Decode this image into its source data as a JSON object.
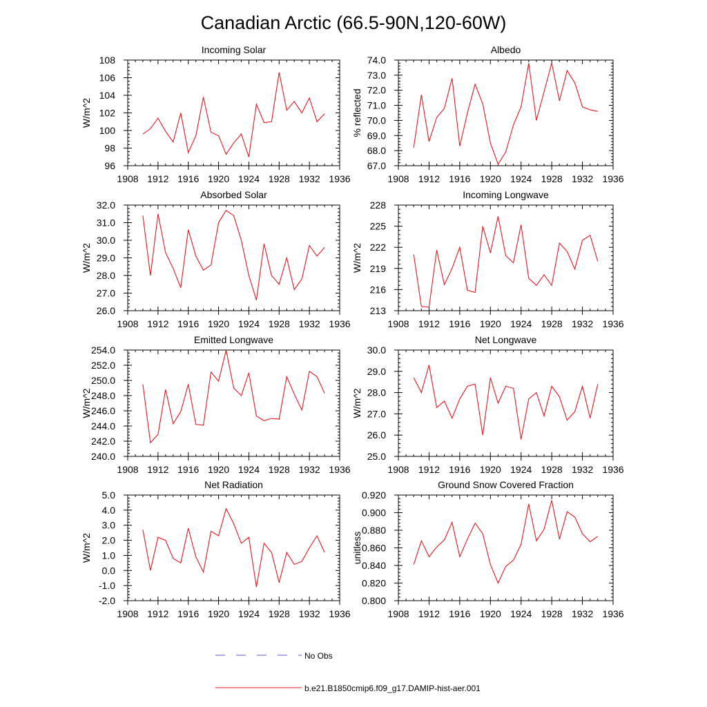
{
  "title": "Canadian Arctic (66.5-90N,120-60W)",
  "legend": {
    "obs_label": "No Obs",
    "model_label": "b.e21.B1850cmip6.f09_g17.DAMIP-hist-aer.001",
    "obs_color": "#5a5ad6",
    "model_color": "#e8141c"
  },
  "chart_data": [
    {
      "type": "line",
      "title": "Incoming Solar",
      "ylabel": "W/m^2",
      "xlim": [
        1908,
        1936
      ],
      "ylim": [
        96,
        108
      ],
      "xticks": [
        "1908",
        "1912",
        "1916",
        "1920",
        "1924",
        "1928",
        "1932",
        "1936"
      ],
      "yticks": [
        "96",
        "98",
        "100",
        "102",
        "104",
        "106",
        "108"
      ],
      "x": [
        1910,
        1911,
        1912,
        1913,
        1914,
        1915,
        1916,
        1917,
        1918,
        1919,
        1920,
        1921,
        1922,
        1923,
        1924,
        1925,
        1926,
        1927,
        1928,
        1929,
        1930,
        1931,
        1932,
        1933,
        1934
      ],
      "series": [
        {
          "values": [
            99.6,
            100.2,
            101.4,
            99.9,
            98.7,
            102.0,
            97.5,
            99.4,
            103.8,
            99.8,
            99.4,
            97.3,
            98.6,
            99.6,
            97.0,
            103.0,
            100.9,
            101.0,
            106.6,
            102.3,
            103.3,
            102.0,
            103.7,
            101.0,
            101.9
          ]
        }
      ]
    },
    {
      "type": "line",
      "title": "Albedo",
      "ylabel": "% reflected",
      "xlim": [
        1908,
        1936
      ],
      "ylim": [
        67.0,
        74.0
      ],
      "xticks": [
        "1908",
        "1912",
        "1916",
        "1920",
        "1924",
        "1928",
        "1932",
        "1936"
      ],
      "yticks": [
        "67.0",
        "68.0",
        "69.0",
        "70.0",
        "71.0",
        "72.0",
        "73.0",
        "74.0"
      ],
      "x": [
        1910,
        1911,
        1912,
        1913,
        1914,
        1915,
        1916,
        1917,
        1918,
        1919,
        1920,
        1921,
        1922,
        1923,
        1924,
        1925,
        1926,
        1927,
        1928,
        1929,
        1930,
        1931,
        1932,
        1933,
        1934
      ],
      "series": [
        {
          "values": [
            68.2,
            71.7,
            68.6,
            70.2,
            70.8,
            72.8,
            68.3,
            70.5,
            72.4,
            71.1,
            68.5,
            67.1,
            67.9,
            69.7,
            70.9,
            73.8,
            70.0,
            71.9,
            73.8,
            71.3,
            73.3,
            72.5,
            70.9,
            70.7,
            70.6
          ]
        }
      ]
    },
    {
      "type": "line",
      "title": "Absorbed Solar",
      "ylabel": "W/m^2",
      "xlim": [
        1908,
        1936
      ],
      "ylim": [
        26.0,
        32.0
      ],
      "xticks": [
        "1908",
        "1912",
        "1916",
        "1920",
        "1924",
        "1928",
        "1932",
        "1936"
      ],
      "yticks": [
        "26.0",
        "27.0",
        "28.0",
        "29.0",
        "30.0",
        "31.0",
        "32.0"
      ],
      "x": [
        1910,
        1911,
        1912,
        1913,
        1914,
        1915,
        1916,
        1917,
        1918,
        1919,
        1920,
        1921,
        1922,
        1923,
        1924,
        1925,
        1926,
        1927,
        1928,
        1929,
        1930,
        1931,
        1932,
        1933,
        1934
      ],
      "series": [
        {
          "values": [
            31.4,
            28.0,
            31.5,
            29.3,
            28.4,
            27.3,
            30.6,
            29.1,
            28.3,
            28.6,
            31.0,
            31.7,
            31.4,
            30.0,
            28.0,
            26.6,
            29.8,
            28.0,
            27.5,
            29.0,
            27.2,
            27.8,
            29.7,
            29.1,
            29.6
          ]
        }
      ]
    },
    {
      "type": "line",
      "title": "Incoming Longwave",
      "ylabel": "W/m^2",
      "xlim": [
        1908,
        1936
      ],
      "ylim": [
        213,
        228
      ],
      "xticks": [
        "1908",
        "1912",
        "1916",
        "1920",
        "1924",
        "1928",
        "1932",
        "1936"
      ],
      "yticks": [
        "213",
        "216",
        "219",
        "222",
        "225",
        "228"
      ],
      "x": [
        1910,
        1911,
        1912,
        1913,
        1914,
        1915,
        1916,
        1917,
        1918,
        1919,
        1920,
        1921,
        1922,
        1923,
        1924,
        1925,
        1926,
        1927,
        1928,
        1929,
        1930,
        1931,
        1932,
        1933,
        1934
      ],
      "series": [
        {
          "values": [
            221.0,
            213.6,
            213.5,
            221.6,
            216.7,
            219.0,
            222.0,
            215.9,
            215.6,
            225.0,
            221.2,
            226.4,
            220.8,
            219.8,
            225.2,
            217.6,
            216.6,
            218.1,
            216.6,
            222.6,
            221.4,
            218.9,
            223.0,
            223.7,
            220.0
          ]
        }
      ]
    },
    {
      "type": "line",
      "title": "Emitted Longwave",
      "ylabel": "W/m^2",
      "xlim": [
        1908,
        1936
      ],
      "ylim": [
        240.0,
        254.0
      ],
      "xticks": [
        "1908",
        "1912",
        "1916",
        "1920",
        "1924",
        "1928",
        "1932",
        "1936"
      ],
      "yticks": [
        "240.0",
        "242.0",
        "244.0",
        "246.0",
        "248.0",
        "250.0",
        "252.0",
        "254.0"
      ],
      "x": [
        1910,
        1911,
        1912,
        1913,
        1914,
        1915,
        1916,
        1917,
        1918,
        1919,
        1920,
        1921,
        1922,
        1923,
        1924,
        1925,
        1926,
        1927,
        1928,
        1929,
        1930,
        1931,
        1932,
        1933,
        1934
      ],
      "series": [
        {
          "values": [
            249.5,
            241.8,
            242.9,
            248.8,
            244.3,
            245.9,
            249.5,
            244.2,
            244.1,
            251.1,
            249.9,
            254.0,
            249.0,
            248.0,
            251.0,
            245.3,
            244.7,
            245.0,
            244.9,
            250.5,
            248.2,
            246.1,
            251.2,
            250.5,
            248.3
          ]
        }
      ]
    },
    {
      "type": "line",
      "title": "Net Longwave",
      "ylabel": "W/m^2",
      "xlim": [
        1908,
        1936
      ],
      "ylim": [
        25.0,
        30.0
      ],
      "xticks": [
        "1908",
        "1912",
        "1916",
        "1920",
        "1924",
        "1928",
        "1932",
        "1936"
      ],
      "yticks": [
        "25.0",
        "26.0",
        "27.0",
        "28.0",
        "29.0",
        "30.0"
      ],
      "x": [
        1910,
        1911,
        1912,
        1913,
        1914,
        1915,
        1916,
        1917,
        1918,
        1919,
        1920,
        1921,
        1922,
        1923,
        1924,
        1925,
        1926,
        1927,
        1928,
        1929,
        1930,
        1931,
        1932,
        1933,
        1934
      ],
      "series": [
        {
          "values": [
            28.7,
            28.0,
            29.3,
            27.3,
            27.6,
            26.8,
            27.7,
            28.3,
            28.4,
            26.0,
            28.7,
            27.5,
            28.3,
            28.2,
            25.8,
            27.7,
            28.0,
            26.9,
            28.3,
            27.8,
            26.7,
            27.1,
            28.3,
            26.8,
            28.4
          ]
        }
      ]
    },
    {
      "type": "line",
      "title": "Net Radiation",
      "ylabel": "W/m^2",
      "xlim": [
        1908,
        1936
      ],
      "ylim": [
        -2.0,
        5.0
      ],
      "xticks": [
        "1908",
        "1912",
        "1916",
        "1920",
        "1924",
        "1928",
        "1932",
        "1936"
      ],
      "yticks": [
        "-2.0",
        "-1.0",
        "0.0",
        "1.0",
        "2.0",
        "3.0",
        "4.0",
        "5.0"
      ],
      "x": [
        1910,
        1911,
        1912,
        1913,
        1914,
        1915,
        1916,
        1917,
        1918,
        1919,
        1920,
        1921,
        1922,
        1923,
        1924,
        1925,
        1926,
        1927,
        1928,
        1929,
        1930,
        1931,
        1932,
        1933,
        1934
      ],
      "series": [
        {
          "values": [
            2.7,
            0.0,
            2.2,
            2.0,
            0.8,
            0.5,
            2.8,
            0.9,
            -0.1,
            2.6,
            2.3,
            4.1,
            3.1,
            1.8,
            2.2,
            -1.1,
            1.8,
            1.2,
            -0.8,
            1.2,
            0.4,
            0.6,
            1.5,
            2.3,
            1.2
          ]
        }
      ]
    },
    {
      "type": "line",
      "title": "Ground Snow Covered Fraction",
      "ylabel": "unitless",
      "xlim": [
        1908,
        1936
      ],
      "ylim": [
        0.8,
        0.92
      ],
      "xticks": [
        "1908",
        "1912",
        "1916",
        "1920",
        "1924",
        "1928",
        "1932",
        "1936"
      ],
      "yticks": [
        "0.800",
        "0.820",
        "0.840",
        "0.860",
        "0.880",
        "0.900",
        "0.920"
      ],
      "x": [
        1910,
        1911,
        1912,
        1913,
        1914,
        1915,
        1916,
        1917,
        1918,
        1919,
        1920,
        1921,
        1922,
        1923,
        1924,
        1925,
        1926,
        1927,
        1928,
        1929,
        1930,
        1931,
        1932,
        1933,
        1934
      ],
      "series": [
        {
          "values": [
            0.841,
            0.868,
            0.85,
            0.861,
            0.869,
            0.889,
            0.85,
            0.87,
            0.888,
            0.876,
            0.841,
            0.82,
            0.839,
            0.846,
            0.864,
            0.91,
            0.868,
            0.881,
            0.914,
            0.87,
            0.901,
            0.895,
            0.876,
            0.867,
            0.873
          ]
        }
      ]
    }
  ]
}
